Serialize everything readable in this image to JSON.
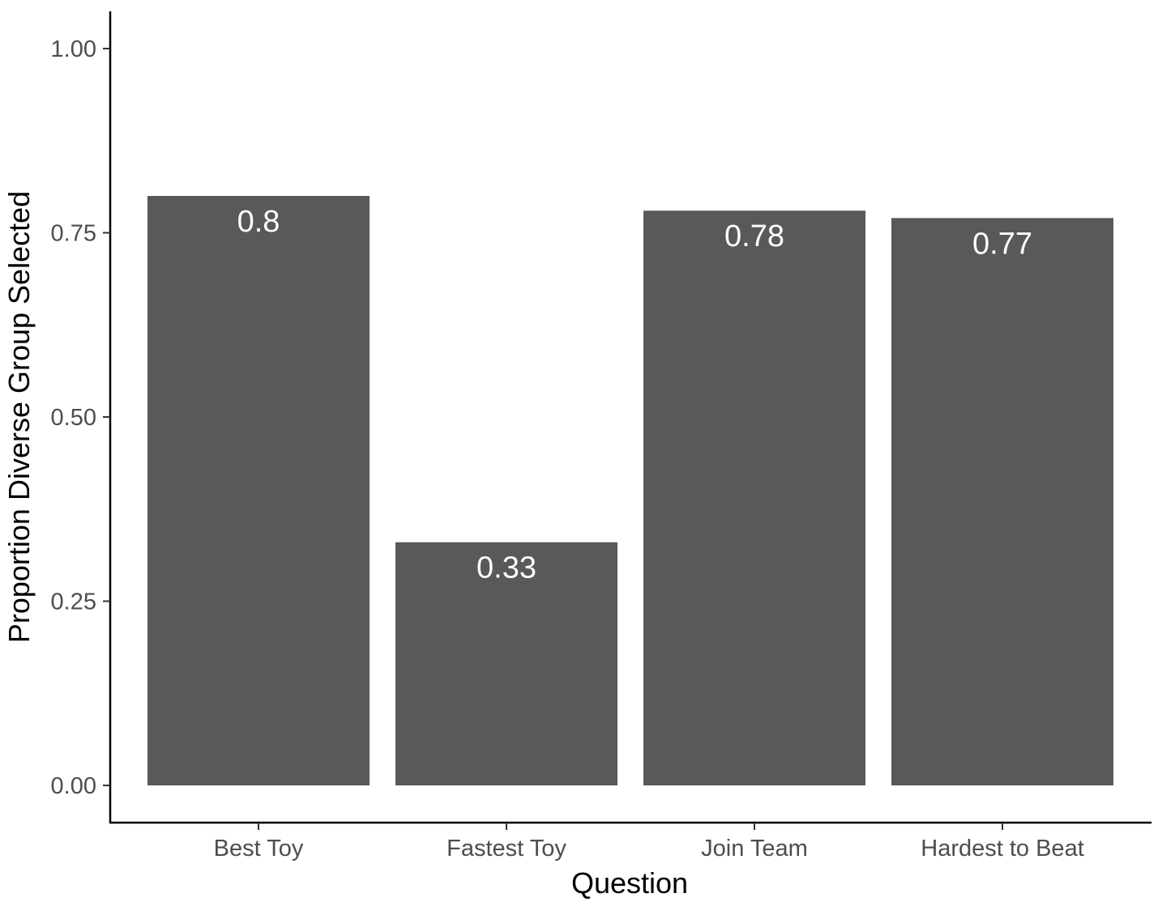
{
  "chart_data": {
    "type": "bar",
    "categories": [
      "Best Toy",
      "Fastest Toy",
      "Join Team",
      "Hardest to Beat"
    ],
    "values": [
      0.8,
      0.33,
      0.78,
      0.77
    ],
    "value_labels": [
      "0.8",
      "0.33",
      "0.78",
      "0.77"
    ],
    "title": "",
    "xlabel": "Question",
    "ylabel": "Proportion Diverse Group Selected",
    "ylim": [
      0,
      1.0
    ],
    "yticks": [
      0.0,
      0.25,
      0.5,
      0.75,
      1.0
    ],
    "ytick_labels": [
      "0.00",
      "0.25",
      "0.50",
      "0.75",
      "1.00"
    ],
    "grid": false,
    "legend": "none",
    "bar_color": "#595959",
    "label_color": "#ffffff"
  }
}
